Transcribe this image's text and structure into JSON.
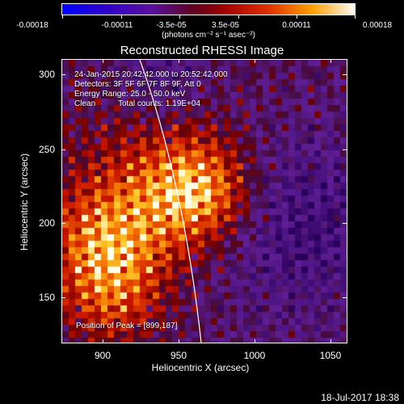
{
  "colorbar": {
    "tick_labels": [
      "-0.00018",
      "-0.00011",
      "-3.5e-05",
      "3.5e-05",
      "0.00011",
      "0.00018"
    ],
    "units": "(photons cm⁻² s⁻¹ asec⁻²)"
  },
  "title": "Reconstructed RHESSI Image",
  "annotations": {
    "time_range": "24-Jan-2015 20:42:42.000 to 20:52:42.000",
    "detectors": "Detectors: 3F 5F 6F 7F 8F 9F, Att 0",
    "energy_range": "Energy Range: 25.0 - 50.0 keV",
    "algorithm": "Clean",
    "total_counts": "Total counts: 1.19E+04",
    "peak_position": "Position of Peak = [899,187]"
  },
  "x_axis": {
    "label": "Heliocentric X (arcsec)",
    "ticks": [
      "900",
      "950",
      "1000",
      "1050"
    ]
  },
  "y_axis": {
    "label": "Heliocentric Y (arcsec)",
    "ticks": [
      "300",
      "250",
      "200",
      "150"
    ]
  },
  "timestamp": "18-Jul-2017 18:38",
  "colors": {
    "background": "#000000",
    "axes": "#ffffff",
    "limb": "#ffffff"
  }
}
